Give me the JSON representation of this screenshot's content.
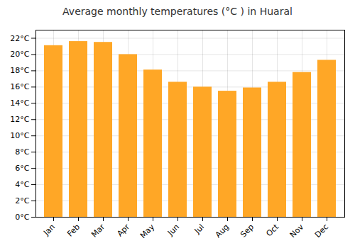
{
  "chart_data": {
    "type": "bar",
    "title": "Average monthly temperatures (°C ) in Huaral",
    "categories": [
      "Jan",
      "Feb",
      "Mar",
      "Apr",
      "May",
      "Jun",
      "Jul",
      "Aug",
      "Sep",
      "Oct",
      "Nov",
      "Dec"
    ],
    "values": [
      21.1,
      21.6,
      21.5,
      20.0,
      18.1,
      16.6,
      16.0,
      15.5,
      15.9,
      16.6,
      17.8,
      19.3
    ],
    "color": "#FFA726",
    "ylim": [
      0,
      23
    ],
    "yticks": [
      {
        "value": 0,
        "label": "0°C"
      },
      {
        "value": 2,
        "label": "2°C"
      },
      {
        "value": 4,
        "label": "4°C"
      },
      {
        "value": 6,
        "label": "6°C"
      },
      {
        "value": 8,
        "label": "8°C"
      },
      {
        "value": 10,
        "label": "10°C"
      },
      {
        "value": 12,
        "label": "12°C"
      },
      {
        "value": 14,
        "label": "14°C"
      },
      {
        "value": 16,
        "label": "16°C"
      },
      {
        "value": 18,
        "label": "18°C"
      },
      {
        "value": 20,
        "label": "20°C"
      },
      {
        "value": 22,
        "label": "22°C"
      }
    ],
    "grid": true
  }
}
